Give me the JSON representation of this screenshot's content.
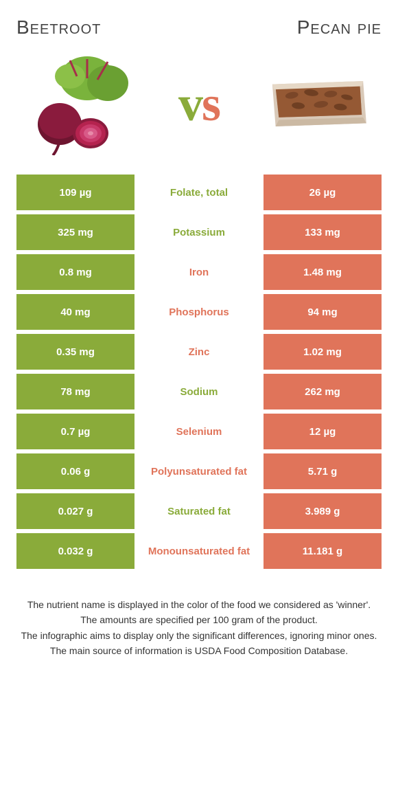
{
  "colors": {
    "left": "#8aab3a",
    "right": "#e0745a",
    "left_label": "#8aab3a",
    "right_label": "#e0745a"
  },
  "food_left": {
    "name": "Beetroot"
  },
  "food_right": {
    "name": "Pecan pie"
  },
  "rows": [
    {
      "left": "109 µg",
      "label": "Folate, total",
      "right": "26 µg",
      "winner": "left"
    },
    {
      "left": "325 mg",
      "label": "Potassium",
      "right": "133 mg",
      "winner": "left"
    },
    {
      "left": "0.8 mg",
      "label": "Iron",
      "right": "1.48 mg",
      "winner": "right"
    },
    {
      "left": "40 mg",
      "label": "Phosphorus",
      "right": "94 mg",
      "winner": "right"
    },
    {
      "left": "0.35 mg",
      "label": "Zinc",
      "right": "1.02 mg",
      "winner": "right"
    },
    {
      "left": "78 mg",
      "label": "Sodium",
      "right": "262 mg",
      "winner": "left"
    },
    {
      "left": "0.7 µg",
      "label": "Selenium",
      "right": "12 µg",
      "winner": "right"
    },
    {
      "left": "0.06 g",
      "label": "Polyunsaturated fat",
      "right": "5.71 g",
      "winner": "right"
    },
    {
      "left": "0.027 g",
      "label": "Saturated fat",
      "right": "3.989 g",
      "winner": "left"
    },
    {
      "left": "0.032 g",
      "label": "Monounsaturated fat",
      "right": "11.181 g",
      "winner": "right"
    }
  ],
  "footer": [
    "The nutrient name is displayed in the color of the food we considered as 'winner'.",
    "The amounts are specified per 100 gram of the product.",
    "The infographic aims to display only the significant differences, ignoring minor ones.",
    "The main source of information is USDA Food Composition Database."
  ]
}
